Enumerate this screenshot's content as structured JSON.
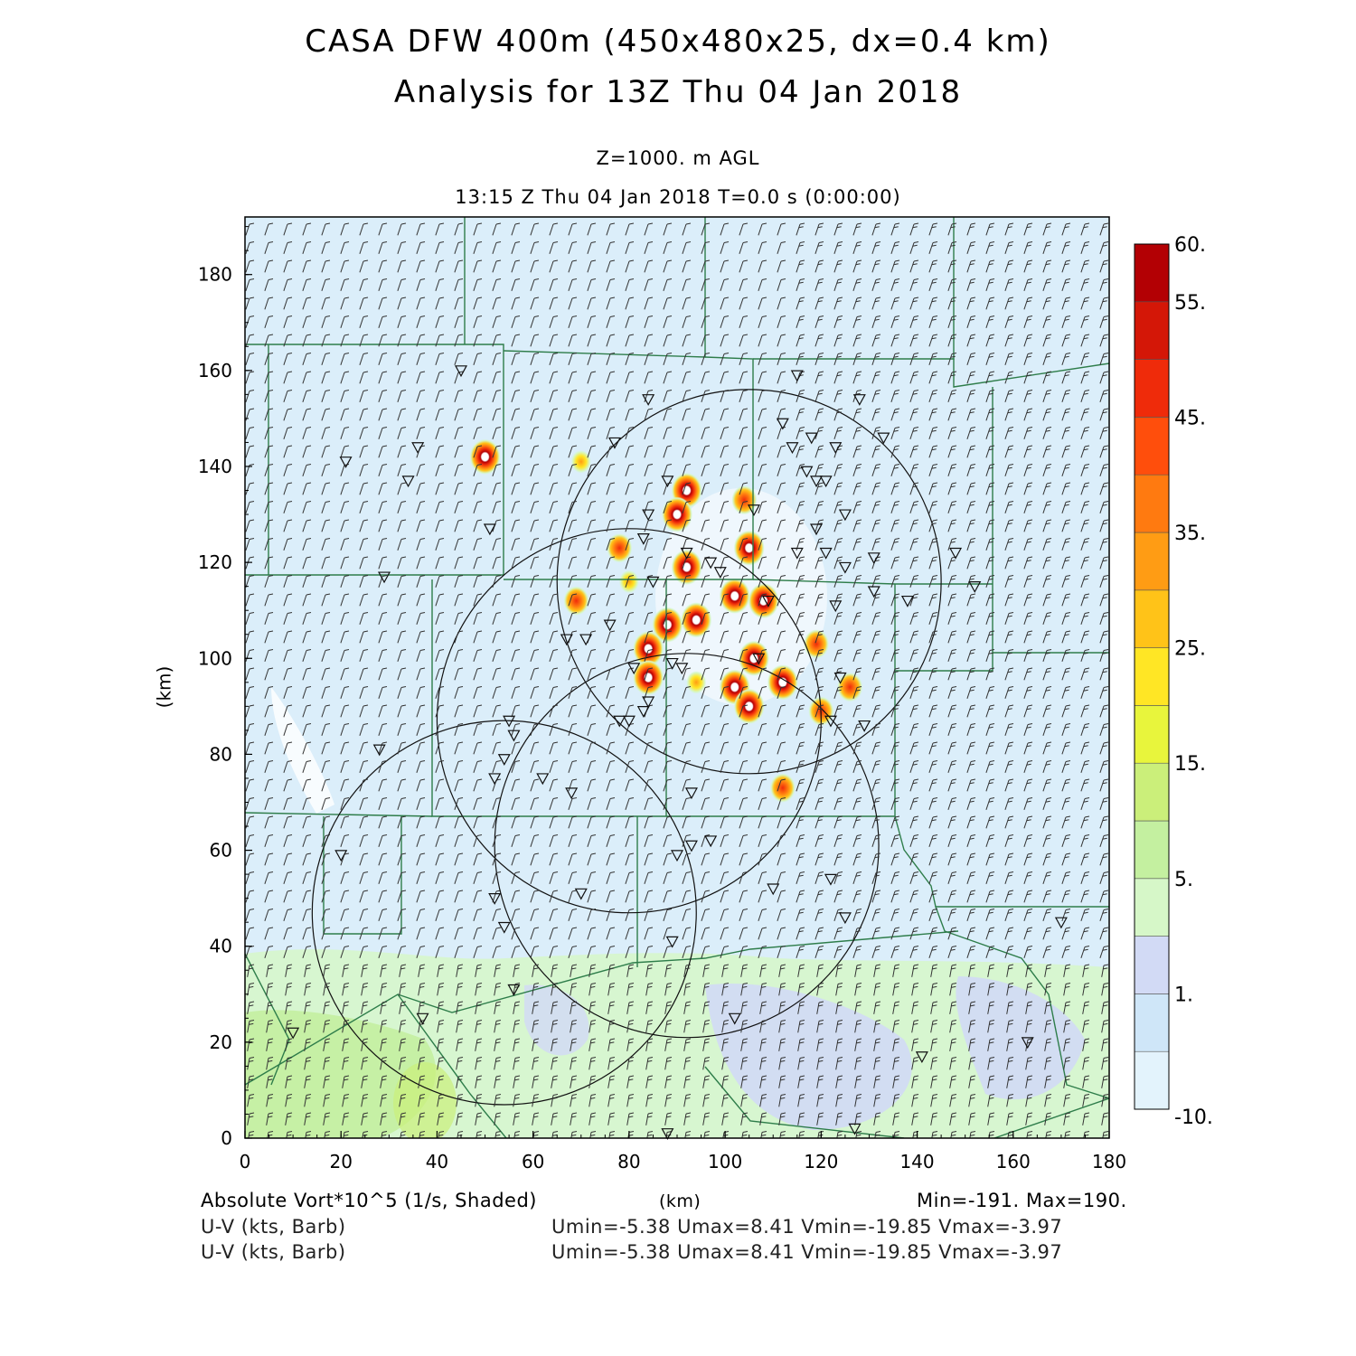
{
  "title": {
    "line1": "CASA DFW 400m (450x480x25, dx=0.4 km)",
    "line2": "Analysis for 13Z Thu 04 Jan 2018"
  },
  "subtitle": {
    "level": "Z=1000. m AGL",
    "time": "13:15 Z Thu 04 Jan 2018    T=0.0 s (0:00:00)"
  },
  "footer": {
    "field": "Absolute Vort*10^5 (1/s, Shaded)",
    "xunit": "(km)",
    "minmax": "Min=-191. Max=190.",
    "barb1_label": "U-V (kts, Barb)",
    "barb1_stats": "Umin=-5.38 Umax=8.41 Vmin=-19.85 Vmax=-3.97",
    "barb2_label": "U-V (kts, Barb)",
    "barb2_stats": "Umin=-5.38 Umax=8.41 Vmin=-19.85 Vmax=-3.97"
  },
  "colors": {
    "background": "#dbeefa",
    "county_lines": "#2e7d4a",
    "circles": "#111111"
  },
  "chart_data": {
    "type": "heatmap",
    "ylabel": "(km)",
    "xlabel": "(km)",
    "xlim": [
      0,
      180
    ],
    "ylim": [
      0,
      192
    ],
    "xticks": [
      0,
      20,
      40,
      60,
      80,
      100,
      120,
      140,
      160,
      180
    ],
    "yticks": [
      0,
      20,
      40,
      60,
      80,
      100,
      120,
      140,
      160,
      180
    ],
    "colorbar": {
      "levels": [
        -10,
        0,
        1,
        2,
        5,
        10,
        15,
        20,
        25,
        30,
        35,
        40,
        45,
        50,
        55,
        60
      ],
      "labels": [
        "-10.",
        "1.",
        "5.",
        "15.",
        "25.",
        "35.",
        "45.",
        "55.",
        "60."
      ],
      "colors": [
        "#e3f3fc",
        "#cfe6f8",
        "#d2daf5",
        "#d6f7c8",
        "#c4f0a0",
        "#cbef7a",
        "#e8f53c",
        "#ffe625",
        "#ffc318",
        "#ff9c14",
        "#ff7a10",
        "#ff4e0c",
        "#ef2b0a",
        "#d41707",
        "#b30004"
      ]
    },
    "radar_circles": [
      {
        "cx": 105,
        "cy": 116,
        "r": 40
      },
      {
        "cx": 80,
        "cy": 87,
        "r": 40
      },
      {
        "cx": 92,
        "cy": 61,
        "r": 40
      },
      {
        "cx": 54,
        "cy": 47,
        "r": 40
      }
    ],
    "vorticity_maxima": [
      {
        "x": 50,
        "y": 142,
        "v": 55
      },
      {
        "x": 70,
        "y": 141,
        "v": 30
      },
      {
        "x": 92,
        "y": 135,
        "v": 55
      },
      {
        "x": 90,
        "y": 130,
        "v": 50
      },
      {
        "x": 104,
        "y": 133,
        "v": 40
      },
      {
        "x": 78,
        "y": 123,
        "v": 45
      },
      {
        "x": 105,
        "y": 123,
        "v": 55
      },
      {
        "x": 92,
        "y": 119,
        "v": 55
      },
      {
        "x": 80,
        "y": 116,
        "v": 35
      },
      {
        "x": 69,
        "y": 112,
        "v": 40
      },
      {
        "x": 102,
        "y": 113,
        "v": 60
      },
      {
        "x": 108,
        "y": 112,
        "v": 60
      },
      {
        "x": 88,
        "y": 107,
        "v": 60
      },
      {
        "x": 94,
        "y": 108,
        "v": 55
      },
      {
        "x": 84,
        "y": 102,
        "v": 60
      },
      {
        "x": 106,
        "y": 100,
        "v": 60
      },
      {
        "x": 112,
        "y": 95,
        "v": 55
      },
      {
        "x": 84,
        "y": 96,
        "v": 50
      },
      {
        "x": 102,
        "y": 94,
        "v": 60
      },
      {
        "x": 105,
        "y": 90,
        "v": 55
      },
      {
        "x": 120,
        "y": 89,
        "v": 45
      },
      {
        "x": 126,
        "y": 94,
        "v": 40
      },
      {
        "x": 119,
        "y": 103,
        "v": 40
      },
      {
        "x": 112,
        "y": 73,
        "v": 45
      },
      {
        "x": 94,
        "y": 95,
        "v": 35
      }
    ],
    "station_markers": [
      [
        45,
        160
      ],
      [
        36,
        144
      ],
      [
        34,
        137
      ],
      [
        21,
        141
      ],
      [
        51,
        127
      ],
      [
        29,
        117
      ],
      [
        28,
        81
      ],
      [
        20,
        59
      ],
      [
        10,
        22
      ],
      [
        37,
        25
      ],
      [
        77,
        145
      ],
      [
        84,
        154
      ],
      [
        88,
        137
      ],
      [
        84,
        130
      ],
      [
        83,
        125
      ],
      [
        85,
        116
      ],
      [
        92,
        122
      ],
      [
        97,
        120
      ],
      [
        99,
        118
      ],
      [
        106,
        131
      ],
      [
        112,
        149
      ],
      [
        114,
        144
      ],
      [
        115,
        159
      ],
      [
        117,
        139
      ],
      [
        119,
        137
      ],
      [
        121,
        137
      ],
      [
        118,
        146
      ],
      [
        123,
        144
      ],
      [
        128,
        154
      ],
      [
        133,
        146
      ],
      [
        125,
        130
      ],
      [
        119,
        127
      ],
      [
        121,
        122
      ],
      [
        125,
        119
      ],
      [
        131,
        121
      ],
      [
        131,
        114
      ],
      [
        123,
        111
      ],
      [
        138,
        112
      ],
      [
        148,
        122
      ],
      [
        152,
        115
      ],
      [
        71,
        104
      ],
      [
        67,
        104
      ],
      [
        76,
        107
      ],
      [
        81,
        98
      ],
      [
        80,
        87
      ],
      [
        78,
        87
      ],
      [
        83,
        89
      ],
      [
        84,
        91
      ],
      [
        89,
        99
      ],
      [
        91,
        98
      ],
      [
        55,
        87
      ],
      [
        56,
        84
      ],
      [
        54,
        79
      ],
      [
        52,
        75
      ],
      [
        62,
        75
      ],
      [
        68,
        72
      ],
      [
        93,
        72
      ],
      [
        97,
        62
      ],
      [
        93,
        61
      ],
      [
        90,
        59
      ],
      [
        70,
        51
      ],
      [
        52,
        50
      ],
      [
        54,
        44
      ],
      [
        56,
        31
      ],
      [
        89,
        41
      ],
      [
        110,
        52
      ],
      [
        122,
        54
      ],
      [
        124,
        96
      ],
      [
        122,
        87
      ],
      [
        129,
        86
      ],
      [
        125,
        46
      ],
      [
        127,
        2
      ],
      [
        141,
        17
      ],
      [
        102,
        25
      ],
      [
        88,
        1
      ],
      [
        163,
        20
      ],
      [
        170,
        45
      ],
      [
        115,
        122
      ],
      [
        109,
        112
      ],
      [
        107,
        100
      ]
    ]
  }
}
